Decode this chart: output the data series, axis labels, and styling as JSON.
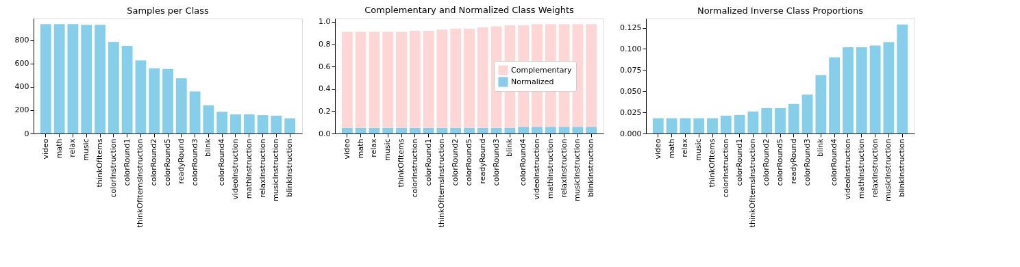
{
  "chart_data": [
    {
      "type": "bar",
      "title": "Samples per Class",
      "categories": [
        "video",
        "math",
        "relax",
        "music",
        "thinkOfItems",
        "colorInstruction",
        "colorRound1",
        "thinkOfItemsInstruction",
        "colorRound2",
        "colorRound5",
        "readyRound",
        "colorRound3",
        "blink",
        "colorRound4",
        "videoInstruction",
        "mathInstruction",
        "relaxInstruction",
        "musicInstruction",
        "blinkInstruction"
      ],
      "series": [
        {
          "color": "#87ceeb",
          "values": [
            940,
            940,
            940,
            934,
            934,
            787,
            753,
            628,
            560,
            555,
            475,
            362,
            243,
            187,
            164,
            164,
            158,
            153,
            130
          ]
        }
      ],
      "ylim": [
        0,
        988
      ],
      "yticks": [
        0,
        200,
        400,
        600,
        800
      ],
      "grid": false,
      "legend": false
    },
    {
      "type": "bar",
      "title": "Complementary and Normalized Class Weights",
      "categories": [
        "video",
        "math",
        "relax",
        "music",
        "thinkOfItems",
        "colorInstruction",
        "colorRound1",
        "thinkOfItemsInstruction",
        "colorRound2",
        "colorRound5",
        "readyRound",
        "colorRound3",
        "blink",
        "colorRound4",
        "videoInstruction",
        "mathInstruction",
        "relaxInstruction",
        "musicInstruction",
        "blinkInstruction"
      ],
      "stacked": true,
      "series": [
        {
          "name": "Normalized",
          "color": "#87ceeb",
          "values": [
            0.05,
            0.05,
            0.05,
            0.05,
            0.05,
            0.05,
            0.05,
            0.05,
            0.05,
            0.05,
            0.05,
            0.05,
            0.05,
            0.06,
            0.06,
            0.06,
            0.06,
            0.06,
            0.06
          ]
        },
        {
          "name": "Complementary",
          "color": "#ffd6d6",
          "values": [
            0.86,
            0.86,
            0.86,
            0.86,
            0.86,
            0.87,
            0.87,
            0.88,
            0.89,
            0.89,
            0.9,
            0.91,
            0.92,
            0.91,
            0.92,
            0.92,
            0.92,
            0.92,
            0.92
          ]
        }
      ],
      "ylim": [
        0,
        1.03
      ],
      "yticks": [
        {
          "value": 0,
          "label": "0.0"
        },
        {
          "value": 0.2,
          "label": "0.2"
        },
        {
          "value": 0.4,
          "label": "0.4"
        },
        {
          "value": 0.6,
          "label": "0.6"
        },
        {
          "value": 0.8,
          "label": "0.8"
        },
        {
          "value": 1,
          "label": "1.0"
        }
      ],
      "grid": false,
      "legend": "center right"
    },
    {
      "type": "bar",
      "title": "Normalized Inverse Class Proportions",
      "categories": [
        "video",
        "math",
        "relax",
        "music",
        "thinkOfItems",
        "colorInstruction",
        "colorRound1",
        "thinkOfItemsInstruction",
        "colorRound2",
        "colorRound5",
        "readyRound",
        "colorRound3",
        "blink",
        "colorRound4",
        "videoInstruction",
        "mathInstruction",
        "relaxInstruction",
        "musicInstruction",
        "blinkInstruction"
      ],
      "series": [
        {
          "color": "#87ceeb",
          "values": [
            0.018,
            0.018,
            0.018,
            0.018,
            0.018,
            0.021,
            0.022,
            0.026,
            0.03,
            0.03,
            0.035,
            0.046,
            0.069,
            0.09,
            0.102,
            0.102,
            0.104,
            0.108,
            0.129
          ]
        }
      ],
      "ylim": [
        0,
        0.136
      ],
      "yticks": [
        {
          "value": 0,
          "label": "0.000"
        },
        {
          "value": 0.025,
          "label": "0.025"
        },
        {
          "value": 0.05,
          "label": "0.050"
        },
        {
          "value": 0.075,
          "label": "0.075"
        },
        {
          "value": 0.1,
          "label": "0.100"
        },
        {
          "value": 0.125,
          "label": "0.125"
        }
      ],
      "grid": false,
      "legend": false
    }
  ]
}
